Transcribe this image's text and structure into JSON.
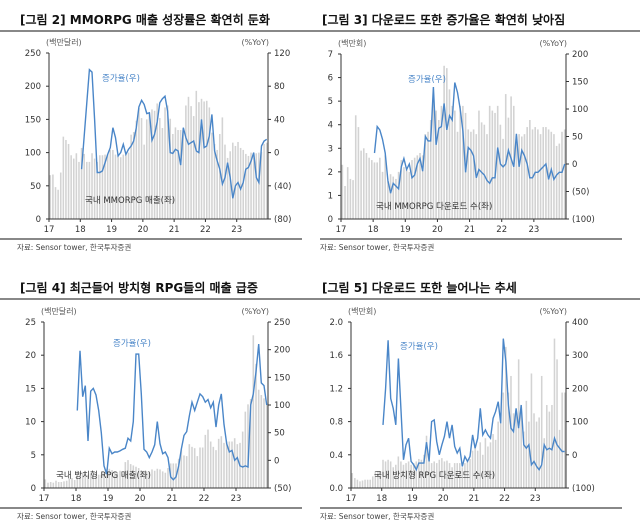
{
  "source": "자료: Sensor tower, 한국투자증권",
  "colors": {
    "bar": "#d3d3d3",
    "line": "#4a86c8",
    "axis": "#333333"
  },
  "chart_data": [
    {
      "type": "bar+line",
      "title": "[그림 2] MMORPG 매출 성장률은 확연히 둔화",
      "left_unit": "(백만달러)",
      "right_unit": "(%YoY)",
      "bar_label": "국내 MMORPG 매출(좌)",
      "line_label": "증가율(우)",
      "ylim": [
        0,
        250
      ],
      "yticks": [
        "0",
        "50",
        "100",
        "150",
        "200",
        "250"
      ],
      "y2lim": [
        -80,
        120
      ],
      "y2ticks": [
        "(80)",
        "(40)",
        "0",
        "40",
        "80",
        "120"
      ],
      "xticks": [
        "17",
        "18",
        "19",
        "20",
        "21",
        "22",
        "23"
      ],
      "bars": [
        66,
        67,
        48,
        44,
        70,
        124,
        119,
        113,
        96,
        91,
        99,
        86,
        107,
        98,
        86,
        86,
        99,
        91,
        86,
        96,
        96,
        97,
        98,
        104,
        104,
        97,
        96,
        93,
        97,
        98,
        100,
        127,
        131,
        148,
        167,
        152,
        112,
        150,
        160,
        165,
        163,
        174,
        152,
        137,
        168,
        171,
        151,
        128,
        138,
        134,
        134,
        132,
        171,
        184,
        170,
        155,
        193,
        176,
        181,
        177,
        178,
        168,
        130,
        113,
        104,
        128,
        153,
        112,
        92,
        102,
        115,
        110,
        116,
        107,
        104,
        98,
        95,
        100,
        100,
        99,
        100,
        101,
        113,
        115
      ],
      "line": [
        -20,
        20,
        60,
        100,
        97,
        40,
        -24,
        -24,
        -22,
        -12,
        -2,
        6,
        30,
        18,
        -4,
        0,
        10,
        -2,
        4,
        8,
        14,
        30,
        55,
        63,
        58,
        47,
        48,
        15,
        22,
        37,
        60,
        65,
        68,
        50,
        0,
        -1,
        4,
        2,
        -15,
        30,
        18,
        10,
        12,
        14,
        2,
        0,
        40,
        6,
        8,
        20,
        46,
        2,
        -10,
        -20,
        -38,
        -30,
        -12,
        -30,
        -55,
        -40,
        -36,
        -44,
        -36,
        -20,
        -18,
        -10,
        0,
        -30,
        -36,
        8,
        14,
        16
      ]
    },
    {
      "type": "bar+line",
      "title": "[그림 3] 다운로드 또한 증가율은 확연히 낮아짐",
      "left_unit": "(백만회)",
      "right_unit": "(%YoY)",
      "bar_label": "국내 MMORPG 다운로드 수(좌)",
      "line_label": "증가율(우)",
      "ylim": [
        0,
        7
      ],
      "yticks": [
        "0",
        "1",
        "2",
        "3",
        "4",
        "5",
        "6",
        "7"
      ],
      "y2lim": [
        -100,
        200
      ],
      "y2ticks": [
        "(100)",
        "(50)",
        "0",
        "50",
        "100",
        "150",
        "200"
      ],
      "xticks": [
        "17",
        "18",
        "19",
        "20",
        "21",
        "22",
        "23"
      ],
      "bars": [
        2.3,
        1.4,
        2.2,
        1.7,
        1.65,
        4.4,
        3.9,
        2.9,
        3.0,
        2.8,
        2.6,
        2.5,
        2.4,
        2.4,
        2.6,
        2.0,
        2.7,
        1.6,
        1.9,
        1.8,
        1.7,
        2.0,
        2.5,
        2.2,
        2.1,
        2.0,
        2.5,
        2.6,
        2.7,
        2.8,
        2.7,
        3.6,
        3.7,
        4.2,
        5.0,
        4.6,
        4.2,
        4.8,
        6.5,
        6.4,
        5.5,
        4.8,
        4.6,
        3.7,
        4.8,
        4.8,
        4.5,
        3.8,
        3.7,
        3.8,
        3.6,
        4.6,
        4.1,
        4.0,
        3.6,
        4.8,
        4.6,
        4.5,
        4.8,
        4.0,
        3.4,
        5.3,
        4.3,
        5.2,
        4.8,
        3.5,
        3.6,
        3.5,
        3.6,
        3.9,
        4.2,
        3.8,
        3.9,
        3.8,
        3.6,
        3.9,
        3.9,
        3.8,
        3.7,
        3.6,
        3.1,
        3.2,
        3.7,
        3.8
      ],
      "line": [
        20,
        68,
        62,
        45,
        20,
        -30,
        -53,
        -35,
        -40,
        -45,
        -5,
        10,
        -10,
        0,
        -25,
        -20,
        0,
        10,
        -13,
        50,
        42,
        42,
        140,
        35,
        65,
        68,
        110,
        62,
        88,
        80,
        148,
        130,
        100,
        60,
        -15,
        30,
        25,
        15,
        -25,
        -10,
        -15,
        -20,
        -30,
        -35,
        -25,
        -25,
        30,
        0,
        -5,
        0,
        25,
        10,
        -5,
        55,
        -5,
        25,
        15,
        0,
        -25,
        -25,
        -15,
        -15,
        -10,
        -5,
        0,
        -28,
        -10,
        -28,
        -20,
        -15,
        -15,
        0
      ]
    },
    {
      "type": "bar+line",
      "title": "[그림 4] 최근들어 방치형 RPG들의 매출 급증",
      "left_unit": "(백만달러)",
      "right_unit": "(%YoY)",
      "bar_label": "국내 방치형 RPG 매출(좌)",
      "line_label": "증가율(우)",
      "ylim": [
        0,
        25
      ],
      "yticks": [
        "0",
        "5",
        "10",
        "15",
        "20",
        "25"
      ],
      "y2lim": [
        -50,
        250
      ],
      "y2ticks": [
        "(50)",
        "0",
        "50",
        "100",
        "150",
        "200",
        "250"
      ],
      "xticks": [
        "17",
        "18",
        "19",
        "20",
        "21",
        "22",
        "23"
      ],
      "bars": [
        1.3,
        0.8,
        0.9,
        0.8,
        1.1,
        0.9,
        0.9,
        1.0,
        1.1,
        1.4,
        1.5,
        1.2,
        2.6,
        2.4,
        2.3,
        2.2,
        2.0,
        2.2,
        2.2,
        2.1,
        2.0,
        2.0,
        2.2,
        2.9,
        2.9,
        2.7,
        2.5,
        2.3,
        2.6,
        2.1,
        3.9,
        4.2,
        3.6,
        3.4,
        3.2,
        3.0,
        2.7,
        2.6,
        2.5,
        2.4,
        2.8,
        2.6,
        2.9,
        2.8,
        2.5,
        2.3,
        3.0,
        3.7,
        3.7,
        3.7,
        4.4,
        5.8,
        4.9,
        4.8,
        6.6,
        6.2,
        6.0,
        4.8,
        6.1,
        6.1,
        8.0,
        8.8,
        7.0,
        6.2,
        5.7,
        7.4,
        7.8,
        6.8,
        7.0,
        7.0,
        7.0,
        7.5,
        6.6,
        6.8,
        8.5,
        11.5,
        12.6,
        13.4,
        23,
        18.7,
        14.8,
        14,
        13.5,
        12.5
      ],
      "line": [
        90,
        198,
        115,
        135,
        35,
        125,
        130,
        118,
        90,
        50,
        -10,
        -25,
        22,
        12,
        15,
        15,
        17,
        20,
        22,
        40,
        35,
        70,
        192,
        192,
        120,
        20,
        15,
        5,
        15,
        28,
        70,
        30,
        12,
        15,
        5,
        -30,
        -35,
        -30,
        -10,
        20,
        45,
        52,
        80,
        105,
        90,
        105,
        120,
        115,
        105,
        110,
        95,
        105,
        60,
        100,
        120,
        65,
        30,
        15,
        18,
        0,
        5,
        -10,
        -12,
        -10,
        -12,
        100,
        120,
        160,
        210,
        140,
        135,
        100
      ]
    },
    {
      "type": "bar+line",
      "title": "[그림 5] 다운로드 또한 늘어나는 추세",
      "left_unit": "(백만회)",
      "right_unit": "(%YoY)",
      "bar_label": "국내 방치형 RPG 다운로드 수(좌)",
      "line_label": "증가율(우)",
      "ylim": [
        0,
        2
      ],
      "yticks": [
        "0.0",
        "0.4",
        "0.8",
        "1.2",
        "1.6",
        "2.0"
      ],
      "y2lim": [
        -100,
        400
      ],
      "y2ticks": [
        "(100)",
        "0",
        "100",
        "200",
        "300",
        "400"
      ],
      "xticks": [
        "17",
        "18",
        "19",
        "20",
        "21",
        "22",
        "23"
      ],
      "bars": [
        0.18,
        0.12,
        0.1,
        0.08,
        0.09,
        0.1,
        0.1,
        0.1,
        0.14,
        0.2,
        0.2,
        0.2,
        0.34,
        0.32,
        0.34,
        0.32,
        0.25,
        0.28,
        0.38,
        0.32,
        0.28,
        0.3,
        0.32,
        0.28,
        0.3,
        0.32,
        0.35,
        0.34,
        0.4,
        0.63,
        0.38,
        0.3,
        0.32,
        0.3,
        0.34,
        0.36,
        0.32,
        0.33,
        0.3,
        0.25,
        0.3,
        0.3,
        0.3,
        0.25,
        0.3,
        0.32,
        0.35,
        0.45,
        0.5,
        0.45,
        0.55,
        0.4,
        0.6,
        0.5,
        0.55,
        0.65,
        0.58,
        0.8,
        0.78,
        1.15,
        1.7,
        1.15,
        1.35,
        0.9,
        0.88,
        1.55,
        0.98,
        0.68,
        1.05,
        0.8,
        1.38,
        0.9,
        0.8,
        0.85,
        1.35,
        0.6,
        1.0,
        0.92,
        1.0,
        1.8,
        1.55,
        0.7,
        1.15,
        1.15
      ],
      "line": [
        90,
        200,
        345,
        170,
        140,
        90,
        290,
        140,
        -15,
        30,
        50,
        -20,
        -30,
        -45,
        -25,
        -25,
        -25,
        38,
        -20,
        100,
        105,
        40,
        0,
        30,
        55,
        100,
        50,
        90,
        25,
        5,
        20,
        -35,
        -5,
        -20,
        -5,
        60,
        20,
        50,
        140,
        60,
        75,
        60,
        50,
        110,
        130,
        160,
        95,
        350,
        280,
        150,
        80,
        70,
        140,
        80,
        150,
        30,
        20,
        30,
        -30,
        -20,
        -35,
        -45,
        -30,
        30,
        15,
        20,
        15,
        50,
        30,
        20,
        10,
        10
      ]
    }
  ]
}
